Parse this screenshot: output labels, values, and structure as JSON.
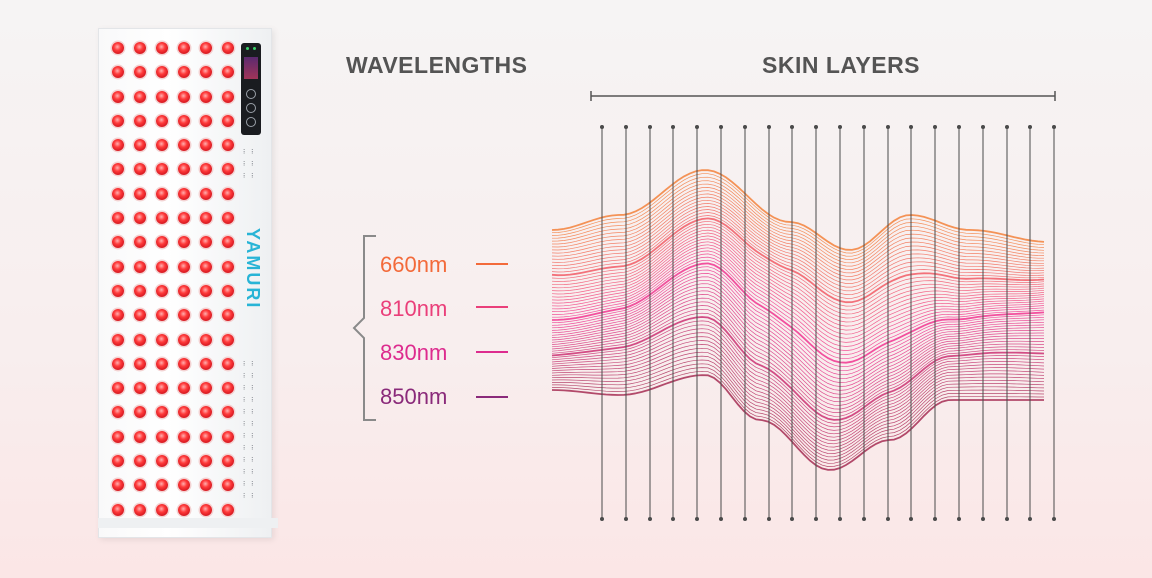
{
  "headings": {
    "wavelengths": "WAVELENGTHS",
    "skin_layers": "SKIN LAYERS"
  },
  "device": {
    "brand": "YAMURI",
    "icon": "red-light-therapy-panel-icon",
    "led_color": "#e21f26",
    "brand_color": "#28b4d6"
  },
  "wavelengths": [
    {
      "label": "660nm",
      "color": "#f36a3a"
    },
    {
      "label": "810nm",
      "color": "#ea3f7a"
    },
    {
      "label": "830nm",
      "color": "#dd2b8e"
    },
    {
      "label": "850nm",
      "color": "#8a2a7a"
    }
  ],
  "colors": {
    "heading": "#545454",
    "bracket": "#8a8a8a",
    "layer_lines": "#4a4a4a",
    "wave_top": "#f27a2f",
    "wave_mid": "#f0288a",
    "wave_bottom": "#a0204a"
  }
}
